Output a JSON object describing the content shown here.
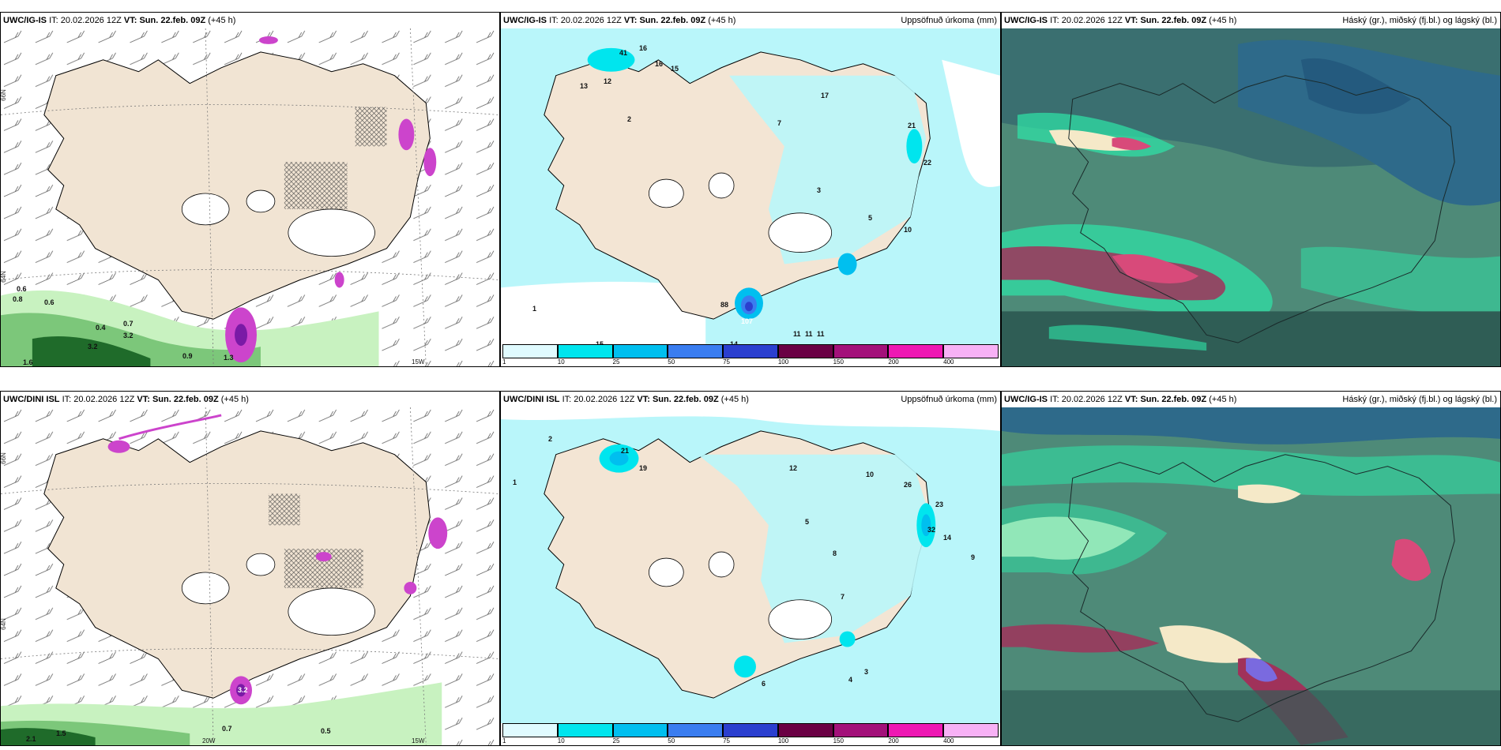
{
  "rows": [
    {
      "model": "UWC/IG-IS",
      "it_label": "IT:",
      "it_value": "20.02.2026 12Z",
      "vt_label": "VT:",
      "vt_value": "Sun. 22.feb. 09Z",
      "lead": "(+45 h)"
    },
    {
      "model": "UWC/DINI ISL",
      "it_label": "IT:",
      "it_value": "20.02.2026 12Z",
      "vt_label": "VT:",
      "vt_value": "Sun. 22.feb. 09Z",
      "lead": "(+45 h)"
    }
  ],
  "precip_title": "Uppsöfnuð úrkoma (mm)",
  "cloud_title": "Háský (gr.), miðský (fj.bl.) og lágský (bl.)",
  "colorbar": {
    "labels": [
      "1",
      "10",
      "25",
      "50",
      "75",
      "100",
      "150",
      "200",
      "400"
    ],
    "colors": [
      "#e0fbff",
      "#00e5ee",
      "#00bfef",
      "#3a7df0",
      "#2b3fcf",
      "#6a0044",
      "#a3117a",
      "#ee18b3",
      "#f7b1f5"
    ]
  },
  "axes": {
    "lat_66": "66N",
    "lat_64": "64N",
    "lon_20": "20W",
    "lon_15": "15W"
  },
  "wind_labels_top": [
    "0.6",
    "0.8",
    "0.6",
    "0.4",
    "0.7",
    "3.2",
    "3.2",
    "0.9",
    "1.3",
    "1.6"
  ],
  "wind_labels_bottom": [
    "0.7",
    "0.5",
    "2.1",
    "3.2",
    "1.5"
  ],
  "precip_numbers_top": [
    "41",
    "16",
    "16",
    "15",
    "12",
    "13",
    "2",
    "7",
    "17",
    "21",
    "22",
    "10",
    "88",
    "107",
    "11",
    "11",
    "11",
    "14",
    "15",
    "3",
    "5",
    "1"
  ],
  "precip_numbers_bottom": [
    "21",
    "19",
    "12",
    "10",
    "26",
    "23",
    "32",
    "14",
    "9",
    "8",
    "5",
    "7",
    "3",
    "4",
    "6",
    "1",
    "2"
  ]
}
